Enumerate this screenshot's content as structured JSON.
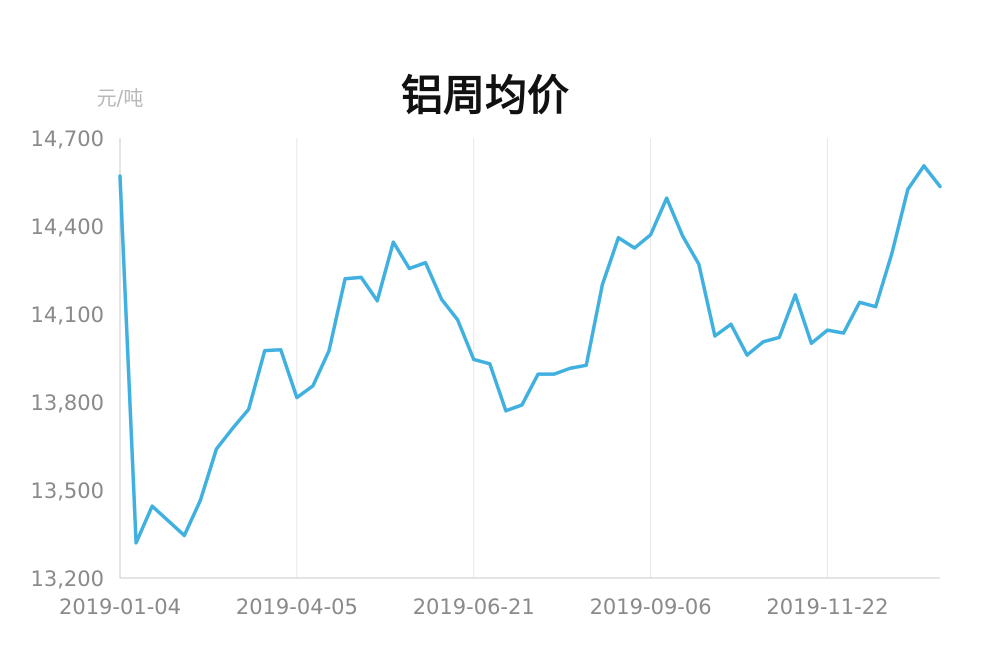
{
  "chart_data": {
    "type": "line",
    "title": "铝周均价",
    "ylabel": "元/吨",
    "xlabel": "",
    "ylim": [
      13200,
      14700
    ],
    "yticks": [
      13200,
      13500,
      13800,
      14100,
      14400,
      14700
    ],
    "ytick_labels": [
      "13,200",
      "13,500",
      "13,800",
      "14,100",
      "14,400",
      "14,700"
    ],
    "x_tick_labels": [
      "2019-01-04",
      "2019-04-05",
      "2019-06-21",
      "2019-09-06",
      "2019-11-22"
    ],
    "x_tick_indices": [
      0,
      11,
      22,
      33,
      44
    ],
    "grid": "vertical",
    "color": "#3fb0e0",
    "series": [
      {
        "values": [
          14570,
          13320,
          13445,
          13395,
          13345,
          13465,
          13640,
          13710,
          13775,
          13975,
          13978,
          13815,
          13855,
          13975,
          14220,
          14225,
          14145,
          14345,
          14255,
          14275,
          14150,
          14080,
          13945,
          13930,
          13770,
          13790,
          13895,
          13895,
          13915,
          13925,
          14200,
          14360,
          14325,
          14370,
          14495,
          14365,
          14270,
          14025,
          14065,
          13960,
          14005,
          14020,
          14165,
          14000,
          14045,
          14035,
          14140,
          14125,
          14305,
          14525,
          14605,
          14535
        ]
      }
    ]
  }
}
